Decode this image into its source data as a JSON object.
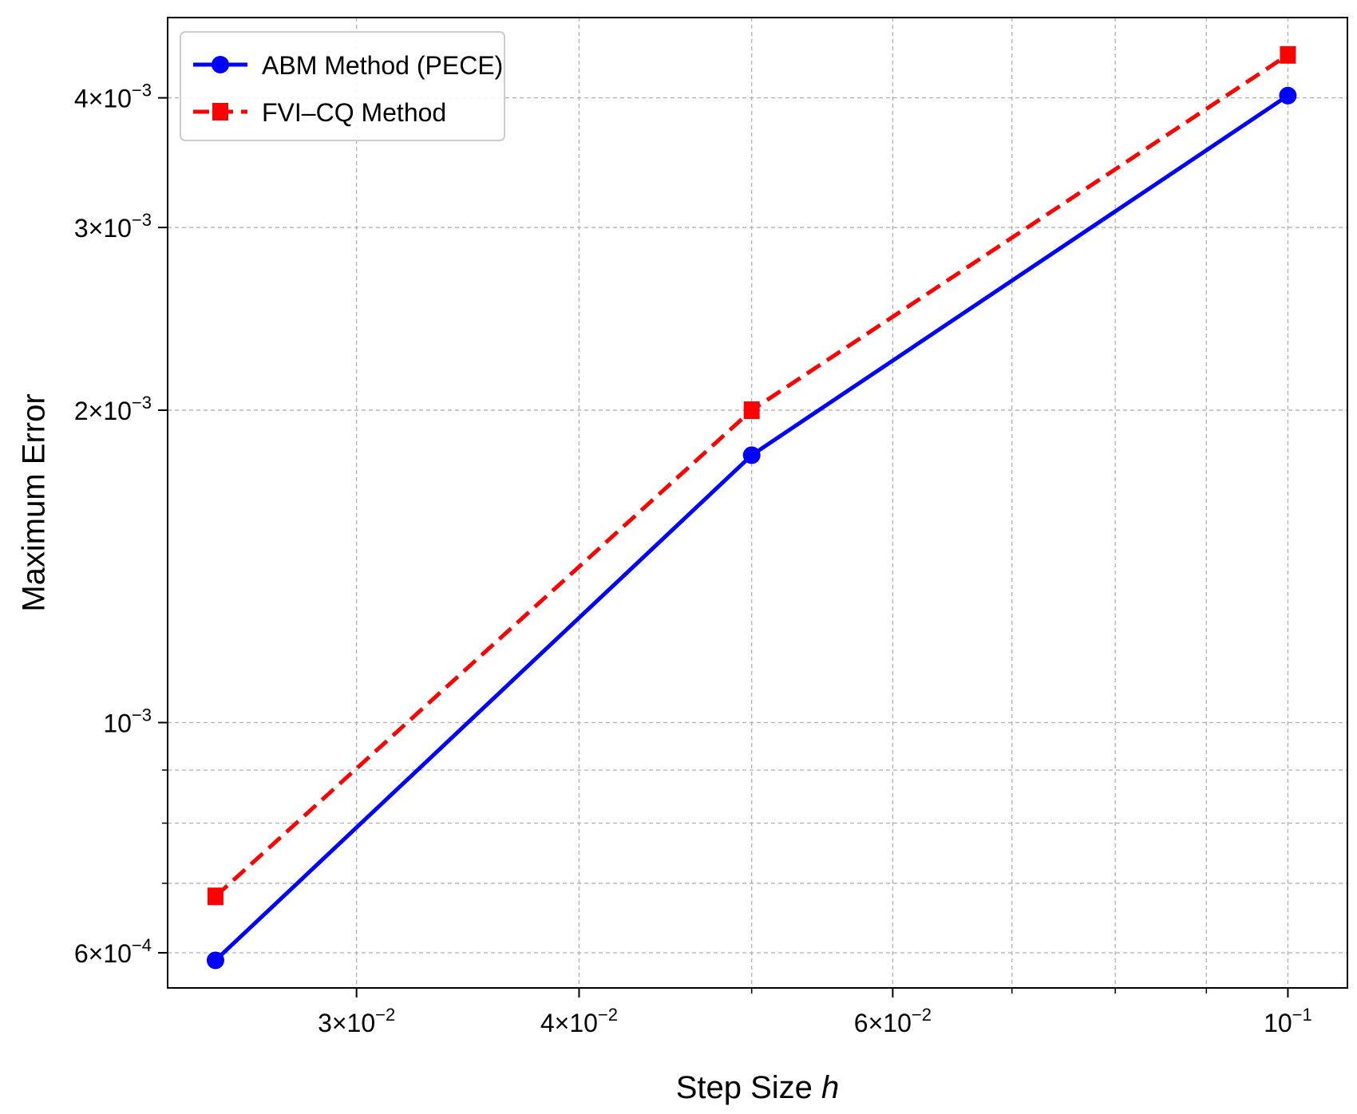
{
  "chart_data": {
    "type": "line",
    "title": "",
    "xlabel": "Step Size",
    "xlabel_var": "h",
    "ylabel": "Maximum Error",
    "xscale": "log",
    "yscale": "log",
    "xlim": [
      0.0235,
      0.108
    ],
    "ylim": [
      0.000555,
      0.00478
    ],
    "grid": true,
    "legend_position": "top-left",
    "x_major_ticks": [
      {
        "value": 0.03,
        "mant": "3",
        "exp": "−2"
      },
      {
        "value": 0.04,
        "mant": "4",
        "exp": "−2"
      },
      {
        "value": 0.06,
        "mant": "6",
        "exp": "−2"
      },
      {
        "value": 0.1,
        "mant": "",
        "exp": "−1"
      }
    ],
    "x_minor_ticks": [
      0.05,
      0.07,
      0.08,
      0.09
    ],
    "y_major_ticks": [
      {
        "value": 0.0006,
        "mant": "6",
        "exp": "−4"
      },
      {
        "value": 0.001,
        "mant": "",
        "exp": "−3"
      },
      {
        "value": 0.002,
        "mant": "2",
        "exp": "−3"
      },
      {
        "value": 0.003,
        "mant": "3",
        "exp": "−3"
      },
      {
        "value": 0.004,
        "mant": "4",
        "exp": "−3"
      }
    ],
    "y_minor_ticks": [
      0.0007,
      0.0008,
      0.0009
    ],
    "x": [
      0.025,
      0.05,
      0.1
    ],
    "series": [
      {
        "name": "ABM Method (PECE)",
        "values": [
          0.00059,
          0.00181,
          0.00402
        ],
        "color": "#0000ff",
        "dash": "solid",
        "marker": "circle"
      },
      {
        "name": "FVI–CQ Method",
        "values": [
          0.00068,
          0.002,
          0.0044
        ],
        "color": "#ff0000",
        "dash": "dashed",
        "marker": "square"
      }
    ]
  }
}
